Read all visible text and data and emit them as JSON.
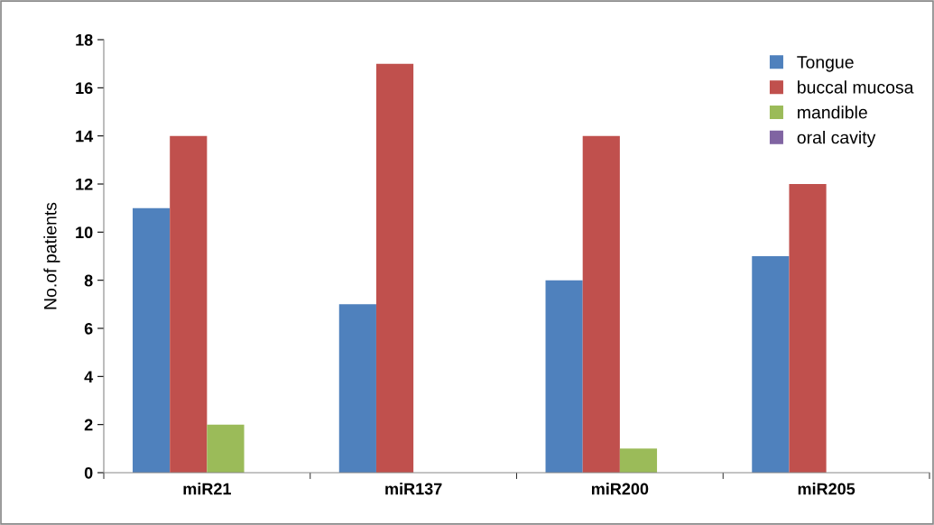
{
  "chart_data": {
    "type": "bar",
    "ylabel": "No.of patients",
    "categories": [
      "miR21",
      "miR137",
      "miR200",
      "miR205"
    ],
    "series": [
      {
        "name": "Tongue",
        "color": "#4f81bd",
        "values": [
          11,
          7,
          8,
          9
        ]
      },
      {
        "name": "buccal mucosa",
        "color": "#c0504d",
        "values": [
          14,
          17,
          14,
          12
        ]
      },
      {
        "name": "mandible",
        "color": "#9bbb59",
        "values": [
          2,
          0,
          1,
          0
        ]
      },
      {
        "name": "oral cavity",
        "color": "#8064a2",
        "values": [
          0,
          0,
          0,
          0
        ]
      }
    ],
    "ylim": [
      0,
      18
    ],
    "yticks": [
      0,
      2,
      4,
      6,
      8,
      10,
      12,
      14,
      16,
      18
    ],
    "grid": false,
    "legend": "top right"
  }
}
